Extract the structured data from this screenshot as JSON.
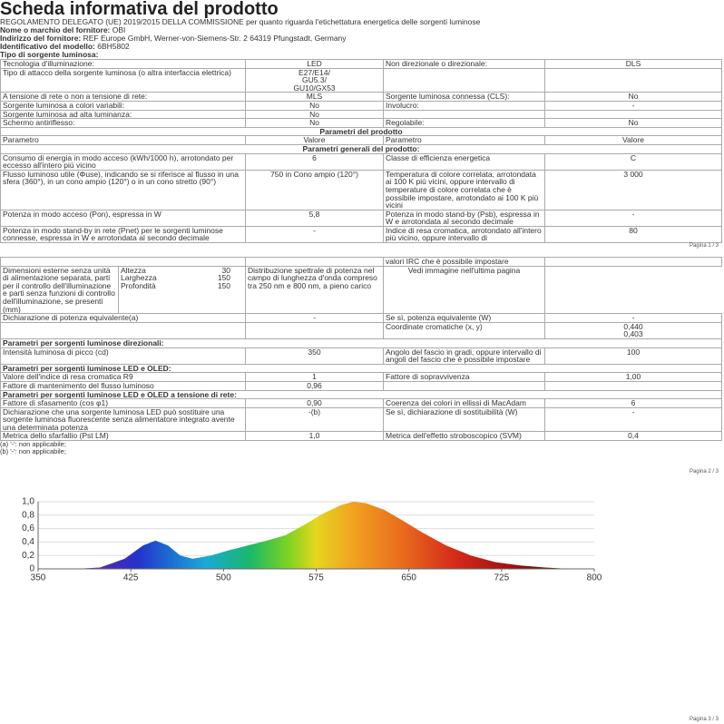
{
  "header": {
    "title": "Scheda informativa del prodotto",
    "regulation": "REGOLAMENTO DELEGATO (UE) 2019/2015 DELLA COMMISSIONE per quanto riguarda l'etichettatura energetica delle sorgenti luminose",
    "lines": [
      {
        "label": "Nome o marchio del fornitore:",
        "value": "OBI"
      },
      {
        "label": "Indirizzo del fornitore:",
        "value": "REF Europe GmbH, Werner-von-Siemens-Str. 2 64319 Pfungstadt, Germany"
      },
      {
        "label": "Identificativo del modello:",
        "value": "6BH5802"
      },
      {
        "label": "Tipo di sorgente luminosa:"
      }
    ]
  },
  "page1": {
    "rows": [
      {
        "cells": [
          "Tecnologia d'illuminazione:",
          "LED",
          "Non direzionale o direzionale:",
          "DLS"
        ]
      },
      {
        "cells": [
          "Tipo di attacco della sorgente luminosa (o altra interfaccia elettrica)",
          [
            "E27/E14/",
            "GU5.3/",
            "GU10/GX53"
          ],
          null,
          null
        ]
      },
      {
        "cells": [
          "A tensione di rete o non a tensione di rete:",
          "MLS",
          "Sorgente luminosa connessa (CLS):",
          "No"
        ]
      },
      {
        "cells": [
          "Sorgente luminosa a colori variabili:",
          "No",
          "Involucro:",
          "-"
        ]
      },
      {
        "cells": [
          "Sorgente luminosa ad alta luminanza:",
          "No",
          null,
          null
        ]
      },
      {
        "cells": [
          "Schermo antiriflesso:",
          "No",
          "Regolabile:",
          "No"
        ]
      },
      {
        "title": "Parametri del prodotto"
      },
      {
        "cells": [
          "Parametro",
          "Valore",
          "Parametro",
          "Valore"
        ]
      },
      {
        "title": "Parametri generali del prodotto:"
      },
      {
        "cells": [
          "Consumo di energia in modo acceso (kWh/1000 h), arrotondato per eccesso all'intero più vicino",
          "6",
          "Classe di efficienza energetica",
          "C"
        ]
      },
      {
        "cells": [
          "Flusso luminoso utile (Φuse), indicando se si riferisce al flusso in una sfera (360°), in un cono ampio (120°) o in un cono stretto (90°)",
          "750 in Cono ampio (120°)",
          "Temperatura di colore correlata, arrotondata ai 100 K più vicini, oppure intervallo di temperature di colore correlata che è possibile impostare, arrotondato ai 100 K più vicini",
          "3 000"
        ]
      },
      {
        "cells": [
          "Potenza in modo acceso (Pon), espressa in W",
          "5,8",
          "Potenza in modo stand-by (Psb), espressa in W e arrotondata al secondo decimale",
          "-"
        ]
      },
      {
        "cells": [
          "Potenza in modo stand-by in rete (Pnet) per le sorgenti luminose connesse, espressa in W e arrotondata al secondo decimale",
          "-",
          "Indice di resa cromatica, arrotondato all'intero più vicino, oppure intervallo di",
          "80"
        ]
      }
    ],
    "footer": "Pagina 1 / 3"
  },
  "page2": {
    "rows": [
      {
        "cells": [
          null,
          null,
          "valori IRC che è possibile impostare",
          null
        ]
      },
      {
        "cells": [
          "Dimensioni esterne senza unità di alimentazione separata, parti per il controllo dell'illuminazione e parti senza funzioni di controllo dell'illuminazione, se presenti (mm)",
          [
            {
              "label": "Altezza",
              "value": "30"
            },
            {
              "label": "Larghezza",
              "value": "150"
            },
            {
              "label": "Profondità",
              "value": "150"
            }
          ],
          "Distribuzione spettrale di potenza nel campo di lunghezza d'onda compreso tra 250 nm e 800 nm, a pieno carico",
          "Vedi immagine nell'ultima pagina"
        ]
      },
      {
        "cells": [
          "Dichiarazione di potenza equivalente(a)",
          "-",
          "Se sì, potenza equivalente (W)",
          "-"
        ]
      },
      {
        "cells": [
          null,
          null,
          "Coordinate cromatiche (x, y)",
          [
            "0,440",
            "0,403"
          ]
        ]
      },
      {
        "section": "Parametri per sorgenti luminose direzionali:"
      },
      {
        "cells": [
          "Intensità luminosa di picco (cd)",
          "350",
          "Angolo del fascio in gradi, oppure intervallo di angoli del fascio che è possibile impostare",
          "100"
        ]
      },
      {
        "section": "Parametri per sorgenti luminose LED e OLED:"
      },
      {
        "cells": [
          "Valore dell'indice di resa cromatica R9",
          "1",
          "Fattore di sopravvivenza",
          "1,00"
        ]
      },
      {
        "cells": [
          "Fattore di mantenimento del flusso luminoso",
          "0,96",
          null,
          null
        ]
      },
      {
        "section": "Parametri per sorgenti luminose LED e OLED a tensione di rete:"
      },
      {
        "cells": [
          "Fattore di sfasamento (cos φ1)",
          "0,90",
          "Coerenza dei colori in ellissi di MacAdam",
          "6"
        ]
      },
      {
        "cells": [
          "Dichiarazione che una sorgente luminosa LED può sostituire una sorgente luminosa fluorescente senza alimentatore integrato avente una determinata potenza",
          "-(b)",
          "Se sì, dichiarazione di sostituibilità (W)",
          "-"
        ]
      },
      {
        "cells": [
          "Metrica dello sfarfallio (Pst LM)",
          "1,0",
          "Metrica dell'effetto stroboscopico (SVM)",
          "0,4"
        ]
      }
    ],
    "notes": [
      "(a) '-': non applicabile;",
      "(b) '-': non applicabile;"
    ],
    "footer": "Pagina 2 / 3"
  },
  "page3": {
    "footer": "Pagina 3 / 3",
    "spectrum": {
      "type": "area",
      "x": [
        380,
        400,
        420,
        435,
        445,
        455,
        465,
        475,
        490,
        505,
        520,
        535,
        550,
        565,
        580,
        595,
        605,
        615,
        630,
        645,
        660,
        680,
        700,
        720,
        740,
        760,
        780
      ],
      "values": [
        0,
        0.02,
        0.15,
        0.35,
        0.42,
        0.35,
        0.2,
        0.15,
        0.2,
        0.28,
        0.35,
        0.42,
        0.5,
        0.65,
        0.82,
        0.95,
        1.0,
        0.98,
        0.88,
        0.72,
        0.55,
        0.35,
        0.2,
        0.1,
        0.05,
        0.02,
        0
      ],
      "xlim": [
        350,
        800
      ],
      "xticks": [
        350,
        425,
        500,
        575,
        650,
        725,
        800
      ],
      "ylim": [
        0,
        1
      ],
      "yticks": [
        0,
        {
          "value": 0.2,
          "label": "0,2"
        },
        {
          "value": 0.4,
          "label": "0,4"
        },
        {
          "value": 0.6,
          "label": "0,6"
        },
        {
          "value": 0.8,
          "label": "0,8"
        },
        {
          "value": 1,
          "label": "1,0"
        }
      ],
      "grid": true
    }
  }
}
